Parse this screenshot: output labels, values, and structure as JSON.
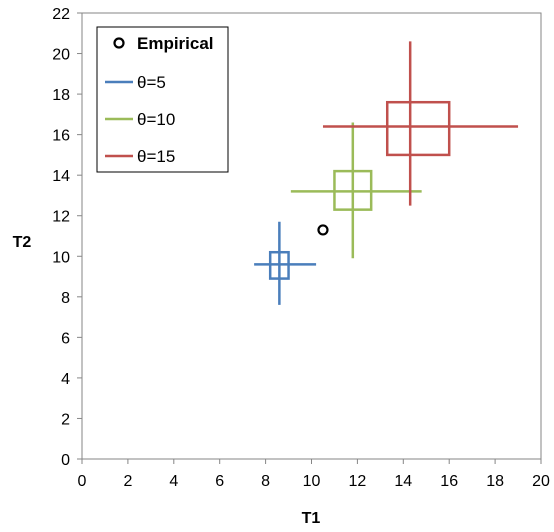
{
  "chart_data": {
    "type": "scatter",
    "xlabel": "T1",
    "ylabel": "T2",
    "xlim": [
      0,
      20
    ],
    "ylim": [
      0,
      22
    ],
    "x_ticks": [
      "0",
      "2",
      "4",
      "6",
      "8",
      "10",
      "12",
      "14",
      "16",
      "18",
      "20"
    ],
    "y_ticks": [
      "0",
      "2",
      "4",
      "6",
      "8",
      "10",
      "12",
      "14",
      "16",
      "18",
      "20",
      "22"
    ],
    "grid": false,
    "legend_position": "top-left",
    "empirical": {
      "name": "Empirical",
      "x": 10.5,
      "y": 11.3,
      "color": "#000000"
    },
    "series": [
      {
        "name": "θ=5",
        "color": "#4a7ebb",
        "center": [
          8.6,
          9.6
        ],
        "x_error": [
          7.5,
          10.2
        ],
        "y_error": [
          7.6,
          11.7
        ],
        "box_x": [
          8.2,
          9.0
        ],
        "box_y": [
          8.9,
          10.2
        ]
      },
      {
        "name": "θ=10",
        "color": "#9bbb59",
        "center": [
          11.8,
          13.2
        ],
        "x_error": [
          9.1,
          14.8
        ],
        "y_error": [
          9.9,
          16.6
        ],
        "box_x": [
          11.0,
          12.6
        ],
        "box_y": [
          12.3,
          14.2
        ]
      },
      {
        "name": "θ=15",
        "color": "#c0504d",
        "center": [
          14.3,
          16.4
        ],
        "x_error": [
          10.5,
          19.0
        ],
        "y_error": [
          12.5,
          20.6
        ],
        "box_x": [
          13.3,
          16.0
        ],
        "box_y": [
          15.0,
          17.6
        ]
      }
    ]
  }
}
